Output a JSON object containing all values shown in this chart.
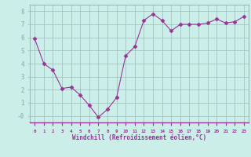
{
  "x": [
    0,
    1,
    2,
    3,
    4,
    5,
    6,
    7,
    8,
    9,
    10,
    11,
    12,
    13,
    14,
    15,
    16,
    17,
    18,
    19,
    20,
    21,
    22,
    23
  ],
  "y": [
    5.9,
    4.0,
    3.5,
    2.1,
    2.2,
    1.6,
    0.8,
    -0.1,
    0.5,
    1.4,
    4.6,
    5.3,
    7.3,
    7.8,
    7.3,
    6.5,
    7.0,
    7.0,
    7.0,
    7.1,
    7.4,
    7.1,
    7.2,
    7.6
  ],
  "line_color": "#993399",
  "marker": "D",
  "marker_size": 2.5,
  "bg_color": "#cceee8",
  "grid_color": "#99bbbb",
  "xlabel": "Windchill (Refroidissement éolien,°C)",
  "tick_label_color": "#993399",
  "ylabel_ticks": [
    0,
    1,
    2,
    3,
    4,
    5,
    6,
    7,
    8
  ],
  "ylabel_labels": [
    "-0",
    "1",
    "2",
    "3",
    "4",
    "5",
    "6",
    "7",
    "8"
  ],
  "xlim": [
    -0.5,
    23.5
  ],
  "ylim": [
    -0.5,
    8.5
  ],
  "spine_color": "#993399",
  "linewidth": 0.8
}
